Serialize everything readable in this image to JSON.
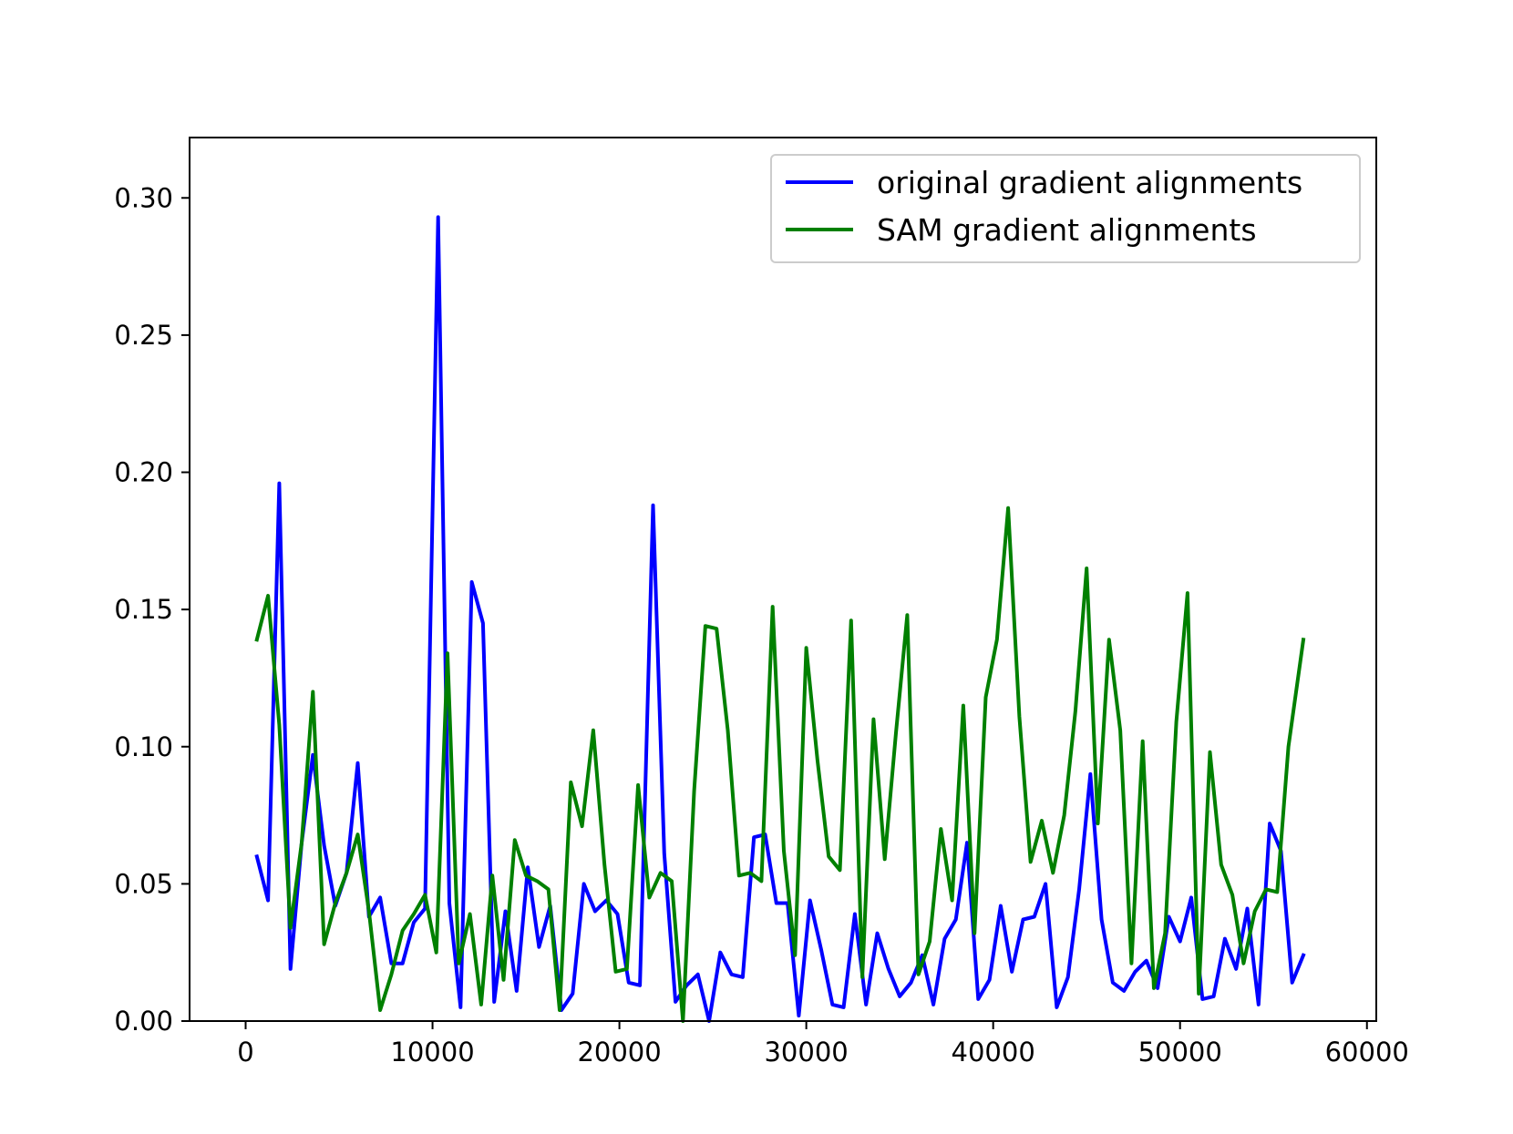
{
  "chart_data": {
    "type": "line",
    "title": "",
    "xlabel": "",
    "ylabel": "",
    "xlim": [
      -3000,
      60500
    ],
    "ylim": [
      0,
      0.322
    ],
    "xticks": [
      0,
      10000,
      20000,
      30000,
      40000,
      50000,
      60000
    ],
    "xtick_labels": [
      "0",
      "10000",
      "20000",
      "30000",
      "40000",
      "50000",
      "60000"
    ],
    "yticks": [
      0,
      0.05,
      0.1,
      0.15,
      0.2,
      0.25,
      0.3
    ],
    "ytick_labels": [
      "0.00",
      "0.05",
      "0.10",
      "0.15",
      "0.20",
      "0.25",
      "0.30"
    ],
    "grid": false,
    "legend_position": "top-right",
    "series": [
      {
        "name": "original gradient alignments",
        "color": "#0000ff",
        "points": [
          [
            600,
            0.06
          ],
          [
            1200,
            0.044
          ],
          [
            1800,
            0.196
          ],
          [
            2400,
            0.019
          ],
          [
            3000,
            0.065
          ],
          [
            3600,
            0.097
          ],
          [
            4200,
            0.064
          ],
          [
            4800,
            0.042
          ],
          [
            5400,
            0.054
          ],
          [
            6000,
            0.094
          ],
          [
            6600,
            0.038
          ],
          [
            7200,
            0.045
          ],
          [
            7800,
            0.021
          ],
          [
            8400,
            0.021
          ],
          [
            9000,
            0.036
          ],
          [
            9600,
            0.041
          ],
          [
            10300,
            0.293
          ],
          [
            10900,
            0.043
          ],
          [
            11500,
            0.005
          ],
          [
            12100,
            0.16
          ],
          [
            12700,
            0.145
          ],
          [
            13300,
            0.007
          ],
          [
            13900,
            0.04
          ],
          [
            14500,
            0.011
          ],
          [
            15100,
            0.056
          ],
          [
            15700,
            0.027
          ],
          [
            16300,
            0.042
          ],
          [
            16900,
            0.004
          ],
          [
            17500,
            0.01
          ],
          [
            18100,
            0.05
          ],
          [
            18700,
            0.04
          ],
          [
            19300,
            0.044
          ],
          [
            19900,
            0.039
          ],
          [
            20500,
            0.014
          ],
          [
            21100,
            0.013
          ],
          [
            21800,
            0.188
          ],
          [
            22400,
            0.061
          ],
          [
            23000,
            0.007
          ],
          [
            23600,
            0.013
          ],
          [
            24200,
            0.017
          ],
          [
            24800,
            0.0
          ],
          [
            25400,
            0.025
          ],
          [
            26000,
            0.017
          ],
          [
            26600,
            0.016
          ],
          [
            27200,
            0.067
          ],
          [
            27800,
            0.068
          ],
          [
            28400,
            0.043
          ],
          [
            29000,
            0.043
          ],
          [
            29600,
            0.002
          ],
          [
            30200,
            0.044
          ],
          [
            30800,
            0.026
          ],
          [
            31400,
            0.006
          ],
          [
            32000,
            0.005
          ],
          [
            32600,
            0.039
          ],
          [
            33200,
            0.006
          ],
          [
            33800,
            0.032
          ],
          [
            34400,
            0.019
          ],
          [
            35000,
            0.009
          ],
          [
            35600,
            0.014
          ],
          [
            36200,
            0.024
          ],
          [
            36800,
            0.006
          ],
          [
            37400,
            0.03
          ],
          [
            38000,
            0.037
          ],
          [
            38600,
            0.065
          ],
          [
            39200,
            0.008
          ],
          [
            39800,
            0.015
          ],
          [
            40400,
            0.042
          ],
          [
            41000,
            0.018
          ],
          [
            41600,
            0.037
          ],
          [
            42200,
            0.038
          ],
          [
            42800,
            0.05
          ],
          [
            43400,
            0.005
          ],
          [
            44000,
            0.016
          ],
          [
            44600,
            0.048
          ],
          [
            45200,
            0.09
          ],
          [
            45800,
            0.037
          ],
          [
            46400,
            0.014
          ],
          [
            47000,
            0.011
          ],
          [
            47600,
            0.018
          ],
          [
            48200,
            0.022
          ],
          [
            48800,
            0.012
          ],
          [
            49400,
            0.038
          ],
          [
            50000,
            0.029
          ],
          [
            50600,
            0.045
          ],
          [
            51200,
            0.008
          ],
          [
            51800,
            0.009
          ],
          [
            52400,
            0.03
          ],
          [
            53000,
            0.019
          ],
          [
            53600,
            0.041
          ],
          [
            54200,
            0.006
          ],
          [
            54800,
            0.072
          ],
          [
            55400,
            0.062
          ],
          [
            56000,
            0.014
          ],
          [
            56600,
            0.024
          ]
        ]
      },
      {
        "name": "SAM gradient alignments",
        "color": "#008000",
        "points": [
          [
            600,
            0.139
          ],
          [
            1200,
            0.155
          ],
          [
            1800,
            0.108
          ],
          [
            2400,
            0.034
          ],
          [
            3000,
            0.065
          ],
          [
            3600,
            0.12
          ],
          [
            4200,
            0.028
          ],
          [
            4800,
            0.043
          ],
          [
            5400,
            0.054
          ],
          [
            6000,
            0.068
          ],
          [
            6600,
            0.04
          ],
          [
            7200,
            0.004
          ],
          [
            7800,
            0.017
          ],
          [
            8400,
            0.033
          ],
          [
            9000,
            0.039
          ],
          [
            9600,
            0.046
          ],
          [
            10200,
            0.025
          ],
          [
            10800,
            0.134
          ],
          [
            11400,
            0.021
          ],
          [
            12000,
            0.039
          ],
          [
            12600,
            0.006
          ],
          [
            13200,
            0.053
          ],
          [
            13800,
            0.015
          ],
          [
            14400,
            0.066
          ],
          [
            15000,
            0.053
          ],
          [
            15600,
            0.051
          ],
          [
            16200,
            0.048
          ],
          [
            16800,
            0.004
          ],
          [
            17400,
            0.087
          ],
          [
            18000,
            0.071
          ],
          [
            18600,
            0.106
          ],
          [
            19200,
            0.057
          ],
          [
            19800,
            0.018
          ],
          [
            20400,
            0.019
          ],
          [
            21000,
            0.086
          ],
          [
            21600,
            0.045
          ],
          [
            22200,
            0.054
          ],
          [
            22800,
            0.051
          ],
          [
            23400,
            0.0
          ],
          [
            24000,
            0.084
          ],
          [
            24600,
            0.144
          ],
          [
            25200,
            0.143
          ],
          [
            25800,
            0.106
          ],
          [
            26400,
            0.053
          ],
          [
            27000,
            0.054
          ],
          [
            27600,
            0.051
          ],
          [
            28200,
            0.151
          ],
          [
            28800,
            0.062
          ],
          [
            29400,
            0.024
          ],
          [
            30000,
            0.136
          ],
          [
            30600,
            0.095
          ],
          [
            31200,
            0.06
          ],
          [
            31800,
            0.055
          ],
          [
            32400,
            0.146
          ],
          [
            33000,
            0.016
          ],
          [
            33600,
            0.11
          ],
          [
            34200,
            0.059
          ],
          [
            34800,
            0.105
          ],
          [
            35400,
            0.148
          ],
          [
            36000,
            0.017
          ],
          [
            36600,
            0.029
          ],
          [
            37200,
            0.07
          ],
          [
            37800,
            0.044
          ],
          [
            38400,
            0.115
          ],
          [
            39000,
            0.032
          ],
          [
            39600,
            0.118
          ],
          [
            40200,
            0.139
          ],
          [
            40800,
            0.187
          ],
          [
            41400,
            0.111
          ],
          [
            42000,
            0.058
          ],
          [
            42600,
            0.073
          ],
          [
            43200,
            0.054
          ],
          [
            43800,
            0.075
          ],
          [
            44400,
            0.113
          ],
          [
            45000,
            0.165
          ],
          [
            45600,
            0.072
          ],
          [
            46200,
            0.139
          ],
          [
            46800,
            0.106
          ],
          [
            47400,
            0.021
          ],
          [
            48000,
            0.102
          ],
          [
            48600,
            0.012
          ],
          [
            49200,
            0.032
          ],
          [
            49800,
            0.109
          ],
          [
            50400,
            0.156
          ],
          [
            51000,
            0.01
          ],
          [
            51600,
            0.098
          ],
          [
            52200,
            0.057
          ],
          [
            52800,
            0.046
          ],
          [
            53400,
            0.021
          ],
          [
            54000,
            0.04
          ],
          [
            54600,
            0.048
          ],
          [
            55200,
            0.047
          ],
          [
            55800,
            0.1
          ],
          [
            56600,
            0.139
          ]
        ]
      }
    ]
  }
}
